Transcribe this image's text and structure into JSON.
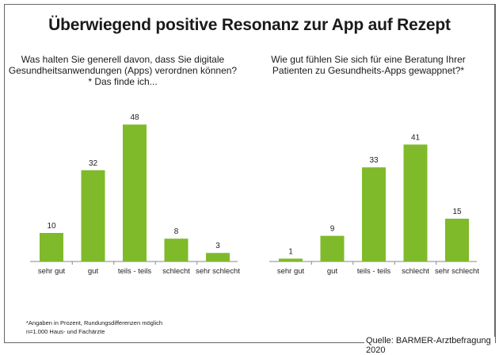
{
  "title": "Überwiegend positive Resonanz zur App auf Rezept",
  "footnote1": "*Angaben in Prozent, Rundungsdifferenzen möglich",
  "footnote2": "n=1.000 Haus- und Fachärzte",
  "source": "Quelle: BARMER-Arztbefragung 2020",
  "bar_color": "#7fba2a",
  "chart_data": [
    {
      "type": "bar",
      "title": "Was halten Sie generell davon, dass Sie digitale Gesundheitsanwendungen (Apps) verordnen können?* Das finde ich...",
      "categories": [
        "sehr gut",
        "gut",
        "teils - teils",
        "schlecht",
        "sehr schlecht"
      ],
      "values": [
        10,
        32,
        48,
        8,
        3
      ]
    },
    {
      "type": "bar",
      "title": "Wie gut fühlen Sie sich für eine Beratung Ihrer Patienten zu Gesundheits-Apps gewappnet?*",
      "categories": [
        "sehr gut",
        "gut",
        "teils - teils",
        "schlecht",
        "sehr schlecht"
      ],
      "values": [
        1,
        9,
        33,
        41,
        15
      ]
    }
  ]
}
